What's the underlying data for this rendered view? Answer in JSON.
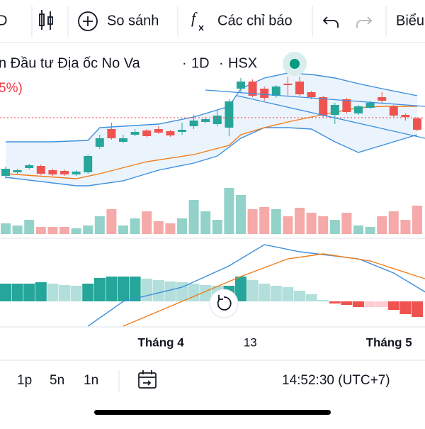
{
  "toolbar": {
    "left": "D",
    "compare": "So sánh",
    "indicators": "Các chỉ báo",
    "right": "Biểu"
  },
  "legend": {
    "name": "n Đầu tư Địa ốc No Va",
    "interval": "1D",
    "exchange": "HSX",
    "change": "5%)"
  },
  "chart_data": {
    "type": "candlestick",
    "ylim": [
      0,
      240
    ],
    "open": [
      52,
      57,
      63,
      66,
      60,
      59,
      54,
      57,
      93,
      118,
      100,
      110,
      116,
      118,
      115,
      114,
      122,
      128,
      125,
      120,
      175,
      185,
      175,
      165,
      182,
      185,
      170,
      163,
      138,
      160,
      140,
      148,
      163,
      150,
      138,
      133
    ],
    "high": [
      65,
      62,
      69,
      68,
      62,
      61,
      60,
      82,
      110,
      127,
      110,
      118,
      118,
      122,
      117,
      127,
      138,
      134,
      145,
      160,
      190,
      188,
      178,
      180,
      192,
      192,
      172,
      165,
      155,
      162,
      152,
      158,
      170,
      152,
      140,
      135
    ],
    "low": [
      48,
      55,
      61,
      53,
      52,
      52,
      52,
      55,
      90,
      103,
      98,
      108,
      106,
      111,
      107,
      110,
      118,
      126,
      122,
      108,
      170,
      163,
      158,
      162,
      165,
      165,
      160,
      135,
      125,
      140,
      138,
      146,
      155,
      135,
      130,
      115
    ],
    "close": [
      62,
      60,
      67,
      55,
      54,
      54,
      58,
      80,
      105,
      105,
      105,
      114,
      108,
      113,
      109,
      117,
      130,
      132,
      137,
      157,
      185,
      165,
      162,
      178,
      180,
      167,
      163,
      137,
      152,
      142,
      150,
      155,
      158,
      137,
      135,
      117
    ],
    "bands": [
      {
        "color": "#3d8fe0",
        "x": [
          0,
          4,
          7,
          8,
          10,
          13,
          16,
          18,
          19,
          20,
          22,
          24,
          26,
          28,
          30,
          32,
          35
        ],
        "values": [
          100,
          100,
          102,
          120,
          122,
          125,
          135,
          145,
          150,
          175,
          190,
          197,
          195,
          190,
          182,
          175,
          165
        ]
      },
      {
        "color": "#3d8fe0",
        "x": [
          0,
          6,
          7,
          10,
          13,
          16,
          18,
          20,
          22,
          24,
          26,
          28,
          30,
          32,
          35
        ],
        "values": [
          50,
          38,
          38,
          45,
          60,
          70,
          80,
          105,
          120,
          120,
          118,
          100,
          85,
          95,
          110
        ]
      }
    ],
    "ma": {
      "color": "#ef7d1a",
      "x": [
        0,
        6,
        8,
        12,
        16,
        19,
        20,
        22,
        24,
        26,
        28,
        30,
        32,
        35
      ],
      "values": [
        55,
        48,
        55,
        72,
        82,
        95,
        110,
        120,
        128,
        135,
        142,
        148,
        150,
        150
      ]
    },
    "volume": {
      "ylim": [
        0,
        80
      ],
      "values": [
        15,
        12,
        20,
        10,
        10,
        10,
        8,
        12,
        25,
        35,
        12,
        22,
        32,
        18,
        15,
        22,
        48,
        32,
        20,
        65,
        55,
        35,
        38,
        35,
        25,
        37,
        30,
        25,
        20,
        30,
        12,
        10,
        25,
        32,
        20,
        40
      ]
    },
    "macd": {
      "ylim": [
        -35,
        85
      ],
      "histogram": [
        25,
        25,
        25,
        27,
        25,
        23,
        22,
        25,
        33,
        35,
        35,
        35,
        32,
        30,
        28,
        27,
        25,
        23,
        22,
        22,
        35,
        30,
        25,
        22,
        20,
        15,
        10,
        2,
        -3,
        -5,
        -8,
        -8,
        -8,
        -12,
        -18,
        -22
      ],
      "lines": [
        {
          "color": "#3d8fe0",
          "x": [
            7,
            10,
            15,
            19,
            22,
            25,
            30,
            33,
            36
          ],
          "values": [
            -35,
            0,
            20,
            50,
            80,
            70,
            60,
            40,
            10
          ]
        },
        {
          "color": "#ef7d1a",
          "x": [
            10,
            15,
            20,
            24,
            27,
            31,
            36
          ],
          "values": [
            -35,
            0,
            35,
            60,
            67,
            57,
            30
          ]
        }
      ]
    },
    "x_labels": [
      {
        "value": 13.2,
        "label": "Tháng 4"
      },
      {
        "value": 20.8,
        "label": "13"
      },
      {
        "value": 32.6,
        "label": "Tháng 5"
      }
    ]
  },
  "bottom_bar": {
    "ranges": [
      "1p",
      "5n",
      "1n"
    ],
    "time": "14:52:30 (UTC+7)"
  }
}
